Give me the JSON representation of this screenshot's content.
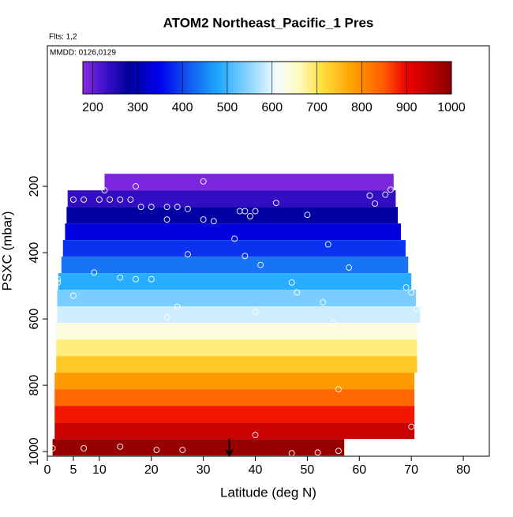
{
  "chart_data": {
    "type": "heatmap",
    "title": "ATOM2 Northeast_Pacific_1 Pres",
    "annotations": [
      "Flts: 1,2",
      "MMDD: 0126,0129"
    ],
    "x_label": "Latitude (deg N)",
    "y_label": "PSXC (mbar)",
    "xlim": [
      0,
      85
    ],
    "xticks": [
      0,
      5,
      10,
      20,
      30,
      40,
      50,
      60,
      70,
      80
    ],
    "ylim": [
      1014,
      -224
    ],
    "yticks": [
      200,
      400,
      600,
      800,
      1000
    ],
    "colorbar_lim": [
      178,
      1000
    ],
    "colorbar_ticks": [
      200,
      300,
      400,
      500,
      600,
      700,
      800,
      900,
      1000
    ],
    "colormap": [
      [
        178,
        "#8a2be2"
      ],
      [
        230,
        "#3a10c8"
      ],
      [
        280,
        "#00009a"
      ],
      [
        350,
        "#0000ee"
      ],
      [
        420,
        "#1460f0"
      ],
      [
        480,
        "#1ea8ff"
      ],
      [
        560,
        "#9fdcff"
      ],
      [
        610,
        "#f6fbff"
      ],
      [
        660,
        "#fffbc0"
      ],
      [
        710,
        "#ffe040"
      ],
      [
        780,
        "#ffa000"
      ],
      [
        850,
        "#ff5a00"
      ],
      [
        900,
        "#f00000"
      ],
      [
        1000,
        "#8b0000"
      ]
    ],
    "levels": [
      {
        "p": [
          162,
          212
        ],
        "lat": [
          11,
          66.6
        ],
        "value": 187
      },
      {
        "p": [
          212,
          262
        ],
        "lat": [
          3.9,
          67
        ],
        "value": 237
      },
      {
        "p": [
          262,
          312
        ],
        "lat": [
          3.7,
          67.4
        ],
        "value": 287
      },
      {
        "p": [
          312,
          362
        ],
        "lat": [
          3.4,
          68
        ],
        "value": 337
      },
      {
        "p": [
          362,
          412
        ],
        "lat": [
          3,
          68.9
        ],
        "value": 387
      },
      {
        "p": [
          412,
          462
        ],
        "lat": [
          2.7,
          69.4
        ],
        "value": 437
      },
      {
        "p": [
          462,
          512
        ],
        "lat": [
          2.1,
          70
        ],
        "value": 487
      },
      {
        "p": [
          512,
          562
        ],
        "lat": [
          1.9,
          70.9
        ],
        "value": 537
      },
      {
        "p": [
          562,
          612
        ],
        "lat": [
          1.9,
          71.7
        ],
        "value": 587
      },
      {
        "p": [
          612,
          662
        ],
        "lat": [
          1.7,
          71.1
        ],
        "value": 637
      },
      {
        "p": [
          662,
          712
        ],
        "lat": [
          1.7,
          71.1
        ],
        "value": 687
      },
      {
        "p": [
          712,
          762
        ],
        "lat": [
          1.7,
          71.1
        ],
        "value": 737
      },
      {
        "p": [
          762,
          812
        ],
        "lat": [
          1.4,
          70.6
        ],
        "value": 787
      },
      {
        "p": [
          812,
          862
        ],
        "lat": [
          1.4,
          70.6
        ],
        "value": 837
      },
      {
        "p": [
          862,
          912
        ],
        "lat": [
          1.4,
          70.6
        ],
        "value": 887
      },
      {
        "p": [
          912,
          962
        ],
        "lat": [
          1.4,
          70.6
        ],
        "value": 937
      },
      {
        "p": [
          962,
          1012
        ],
        "lat": [
          1,
          57.1
        ],
        "value": 987
      }
    ],
    "points": {
      "lat": [
        11,
        17,
        3,
        5,
        7,
        10,
        12,
        14,
        16,
        18,
        20,
        23,
        25,
        27,
        23,
        30,
        32,
        30,
        37,
        38,
        40,
        39,
        44,
        50,
        62,
        63,
        65,
        66,
        36,
        38,
        41,
        54,
        58,
        27,
        9,
        14,
        17,
        2,
        2,
        20,
        48,
        47,
        5,
        69,
        70,
        71,
        25,
        23,
        40,
        53,
        55,
        54,
        56,
        70,
        40,
        1,
        7,
        14,
        21,
        26,
        47,
        52,
        56
      ],
      "pres": [
        212,
        200,
        240,
        240,
        240,
        240,
        240,
        240,
        240,
        262,
        262,
        262,
        262,
        268,
        300,
        300,
        305,
        185,
        275,
        275,
        275,
        290,
        250,
        286,
        228,
        252,
        225,
        210,
        358,
        410,
        437,
        375,
        445,
        405,
        460,
        475,
        480,
        480,
        490,
        480,
        520,
        490,
        530,
        505,
        520,
        570,
        563,
        595,
        578,
        550,
        612,
        630,
        812,
        925,
        950,
        990,
        990,
        985,
        995,
        995,
        1005,
        1003,
        998
      ]
    },
    "arrow_lat": 35
  }
}
